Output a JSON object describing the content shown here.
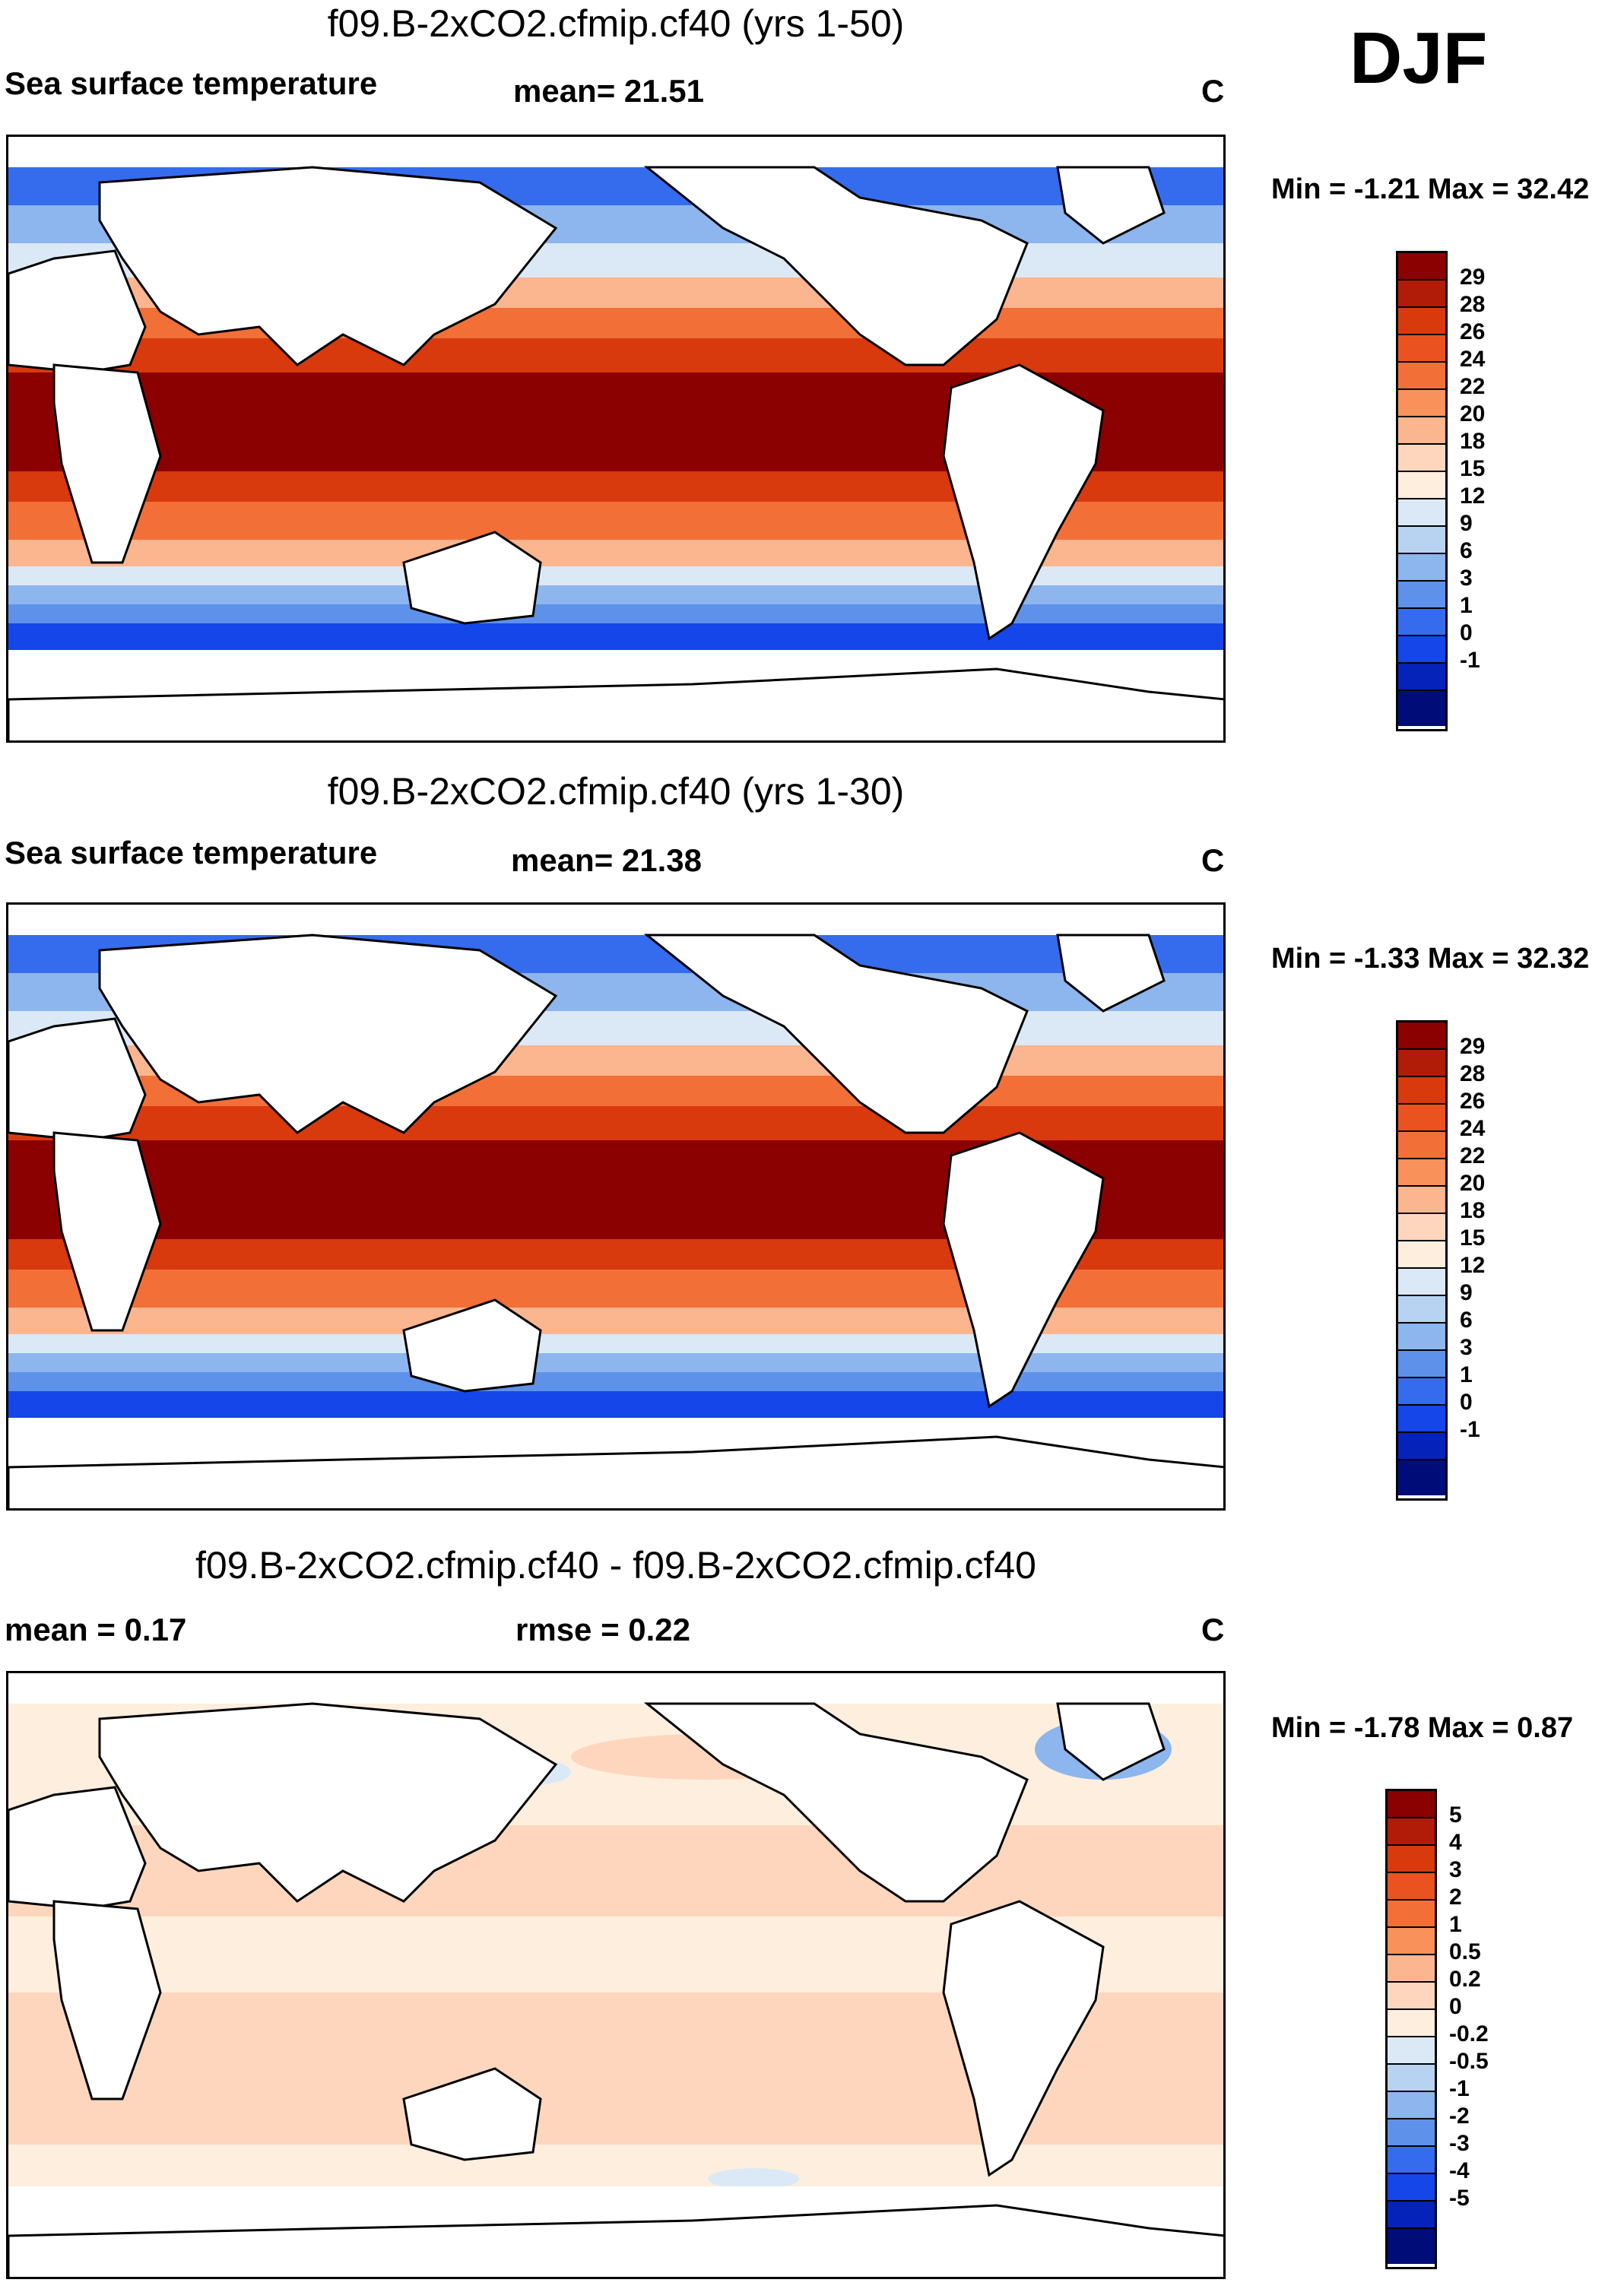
{
  "season": "DJF",
  "units_label": "C",
  "panels": [
    {
      "id": "top",
      "title": "f09.B-2xCO2.cfmip.cf40 (yrs 1-50)",
      "left_label": "Sea surface temperature",
      "mid_label": "mean=  21.51",
      "right_label": "C",
      "min_max": "Min =  -1.21 Max =  32.42",
      "field": "sst"
    },
    {
      "id": "middle",
      "title": "f09.B-2xCO2.cfmip.cf40 (yrs 1-30)",
      "left_label": "Sea surface temperature",
      "mid_label": "mean=  21.38",
      "right_label": "C",
      "min_max": "Min =  -1.33 Max =  32.32",
      "field": "sst"
    },
    {
      "id": "bottom",
      "title": "f09.B-2xCO2.cfmip.cf40 - f09.B-2xCO2.cfmip.cf40",
      "left_label": "mean =   0.17",
      "mid_label": "rmse =   0.22",
      "right_label": "C",
      "min_max": "Min =  -1.78 Max =   0.87",
      "field": "diff"
    }
  ],
  "colorbars": {
    "sst": {
      "labels": [
        "29",
        "28",
        "26",
        "24",
        "22",
        "20",
        "18",
        "15",
        "12",
        "9",
        "6",
        "3",
        "1",
        "0",
        "-1"
      ],
      "colors": [
        "#8b0000",
        "#b01c08",
        "#d83a0e",
        "#ea5320",
        "#f36f38",
        "#f8925a",
        "#fbb58f",
        "#fdd6bd",
        "#fdeede",
        "#dbe9f7",
        "#b8d3f2",
        "#8db5ee",
        "#5e91ea",
        "#356cee",
        "#1446ea",
        "#0523b8",
        "#000d78"
      ]
    },
    "diff": {
      "labels": [
        "5",
        "4",
        "3",
        "2",
        "1",
        "0.5",
        "0.2",
        "0",
        "-0.2",
        "-0.5",
        "-1",
        "-2",
        "-3",
        "-4",
        "-5"
      ],
      "colors": [
        "#8b0000",
        "#b01c08",
        "#d83a0e",
        "#ea5320",
        "#f36f38",
        "#f8925a",
        "#fbb58f",
        "#fdd6bd",
        "#fdeede",
        "#dbe9f7",
        "#b8d3f2",
        "#8db5ee",
        "#5e91ea",
        "#356cee",
        "#1446ea",
        "#0523b8",
        "#000d78"
      ]
    }
  }
}
